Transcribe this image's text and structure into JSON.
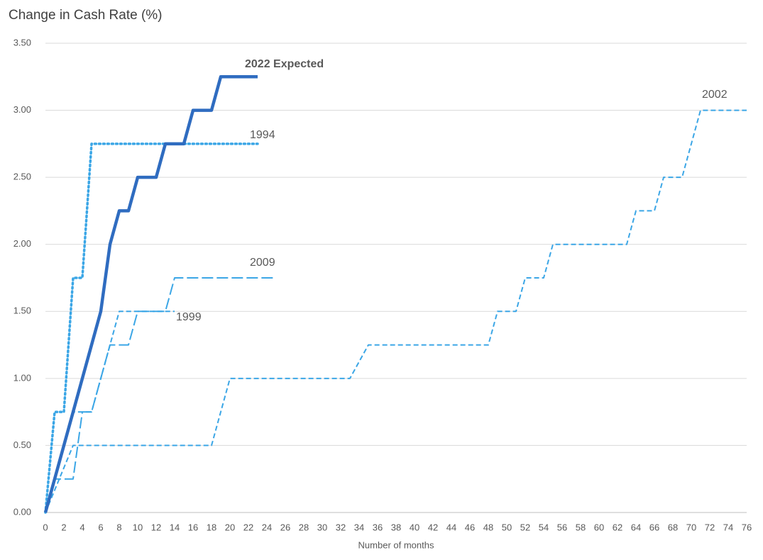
{
  "chart_data": {
    "type": "line",
    "title": "Change in Cash Rate (%)",
    "x_label": "Number of months",
    "xlim": [
      0,
      76
    ],
    "xticks": [
      0,
      2,
      4,
      6,
      8,
      10,
      12,
      14,
      16,
      18,
      20,
      22,
      24,
      26,
      28,
      30,
      32,
      34,
      36,
      38,
      40,
      42,
      44,
      46,
      48,
      50,
      52,
      54,
      56,
      58,
      60,
      62,
      64,
      66,
      68,
      70,
      72,
      74,
      76
    ],
    "ylim": [
      0,
      3.5
    ],
    "yticks": [
      {
        "value": 0,
        "label": "0.00"
      },
      {
        "value": 0.5,
        "label": "0.50"
      },
      {
        "value": 1,
        "label": "1.00"
      },
      {
        "value": 1.5,
        "label": "1.50"
      },
      {
        "value": 2,
        "label": "2.00"
      },
      {
        "value": 2.5,
        "label": "2.50"
      },
      {
        "value": 3,
        "label": "3.00"
      },
      {
        "value": 3.5,
        "label": "3.50"
      }
    ],
    "grid": true,
    "series": [
      {
        "name": "2022 Expected",
        "color": "#2f6cc0",
        "dash": "solid",
        "x": [
          0,
          6,
          7,
          8,
          9,
          10,
          12,
          13,
          15,
          16,
          18,
          19,
          23
        ],
        "values": [
          0,
          1.5,
          2.0,
          2.25,
          2.25,
          2.5,
          2.5,
          2.75,
          2.75,
          3.0,
          3.0,
          3.25,
          3.25
        ]
      },
      {
        "name": "1994",
        "color": "#3ba6e6",
        "dash": "dotted",
        "x": [
          0,
          1,
          2,
          3,
          4,
          5,
          23
        ],
        "values": [
          0,
          0.75,
          0.75,
          1.75,
          1.75,
          2.75,
          2.75
        ]
      },
      {
        "name": "2009",
        "color": "#3ba6e6",
        "dash": "long-dash",
        "x": [
          0,
          1,
          3,
          4,
          5,
          7,
          9,
          10,
          13,
          14,
          25
        ],
        "values": [
          0,
          0.25,
          0.25,
          0.75,
          0.75,
          1.25,
          1.25,
          1.5,
          1.5,
          1.75,
          1.75
        ]
      },
      {
        "name": "1999",
        "color": "#3ba6e6",
        "dash": "dashed",
        "x": [
          0,
          3,
          5,
          6,
          7,
          8,
          14
        ],
        "values": [
          0,
          0.75,
          0.75,
          1.0,
          1.25,
          1.5,
          1.5
        ]
      },
      {
        "name": "2002",
        "color": "#3ba6e6",
        "dash": "dashed",
        "x": [
          0,
          3,
          18,
          20,
          33,
          35,
          48,
          49,
          51,
          52,
          54,
          55,
          63,
          64,
          66,
          67,
          69,
          71,
          76
        ],
        "values": [
          0,
          0.5,
          0.5,
          1.0,
          1.0,
          1.25,
          1.25,
          1.5,
          1.5,
          1.75,
          1.75,
          2.0,
          2.0,
          2.25,
          2.25,
          2.5,
          2.5,
          3.0,
          3.0
        ]
      }
    ]
  }
}
